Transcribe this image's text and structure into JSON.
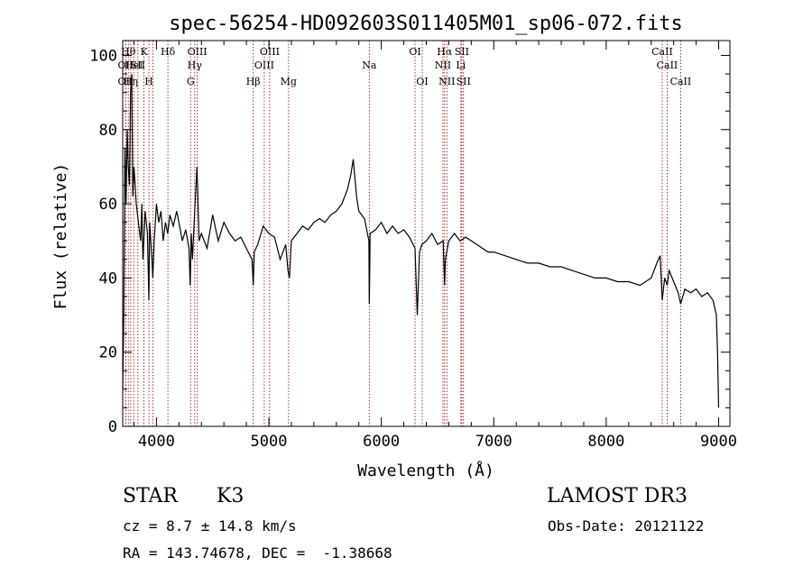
{
  "chart_data": {
    "type": "line",
    "title": "spec-56254-HD092603S011405M01_sp06-072.fits",
    "xlabel": "Wavelength (Å)",
    "ylabel": "Flux (relative)",
    "xlim": [
      3700,
      9100
    ],
    "ylim": [
      0,
      104
    ],
    "x_ticks": [
      4000,
      5000,
      6000,
      7000,
      8000,
      9000
    ],
    "y_ticks": [
      0,
      20,
      40,
      60,
      80,
      100
    ],
    "series": [
      {
        "name": "spectrum",
        "color": "#000000",
        "x": [
          3700,
          3710,
          3720,
          3730,
          3740,
          3750,
          3760,
          3770,
          3780,
          3790,
          3800,
          3820,
          3840,
          3860,
          3870,
          3880,
          3900,
          3920,
          3933,
          3940,
          3960,
          3968,
          3980,
          4000,
          4020,
          4040,
          4060,
          4080,
          4100,
          4120,
          4150,
          4180,
          4200,
          4230,
          4260,
          4290,
          4300,
          4310,
          4320,
          4340,
          4360,
          4380,
          4400,
          4450,
          4500,
          4550,
          4600,
          4650,
          4700,
          4750,
          4800,
          4850,
          4861,
          4870,
          4900,
          4950,
          5000,
          5050,
          5100,
          5150,
          5170,
          5183,
          5200,
          5250,
          5300,
          5350,
          5400,
          5450,
          5500,
          5550,
          5600,
          5650,
          5700,
          5730,
          5750,
          5780,
          5800,
          5850,
          5890,
          5893,
          5896,
          5900,
          5950,
          6000,
          6050,
          6100,
          6150,
          6200,
          6250,
          6300,
          6320,
          6340,
          6360,
          6400,
          6450,
          6500,
          6550,
          6563,
          6570,
          6600,
          6650,
          6700,
          6750,
          6800,
          6850,
          6900,
          6950,
          7000,
          7100,
          7200,
          7300,
          7400,
          7500,
          7600,
          7700,
          7800,
          7900,
          8000,
          8100,
          8200,
          8300,
          8400,
          8450,
          8480,
          8498,
          8520,
          8542,
          8560,
          8600,
          8640,
          8662,
          8700,
          8750,
          8800,
          8850,
          8900,
          8950,
          8980,
          8990,
          9000
        ],
        "y": [
          10,
          30,
          75,
          60,
          80,
          70,
          65,
          90,
          95,
          62,
          70,
          60,
          55,
          50,
          60,
          45,
          58,
          52,
          34,
          55,
          45,
          40,
          50,
          60,
          55,
          58,
          50,
          55,
          52,
          57,
          54,
          58,
          55,
          50,
          53,
          48,
          38,
          52,
          45,
          58,
          70,
          50,
          52,
          48,
          57,
          50,
          55,
          52,
          50,
          51,
          48,
          45,
          38,
          47,
          49,
          54,
          52,
          51,
          45,
          49,
          42,
          40,
          50,
          52,
          54,
          53,
          55,
          56,
          55,
          57,
          58,
          60,
          64,
          68,
          72,
          62,
          58,
          56,
          50,
          33,
          40,
          52,
          53,
          55,
          52,
          54,
          52,
          53,
          51,
          48,
          30,
          47,
          49,
          50,
          52,
          49,
          50,
          38,
          45,
          50,
          52,
          50,
          51,
          50,
          49,
          48,
          47,
          47,
          46,
          45,
          44,
          44,
          43,
          43,
          42,
          41,
          40,
          40,
          39,
          39,
          38,
          40,
          44,
          46,
          34,
          40,
          38,
          42,
          39,
          36,
          33,
          37,
          36,
          37,
          35,
          36,
          34,
          30,
          20,
          5
        ]
      }
    ],
    "line_groups": [
      {
        "name": "Halpha-group",
        "color": "#8b0000",
        "lines": [
          {
            "wavelength": 3727,
            "label": "OII",
            "row": 2
          },
          {
            "wavelength": 3727,
            "label": "OII",
            "row": 3
          },
          {
            "wavelength": 3750,
            "label": "Hθ",
            "row": 1
          },
          {
            "wavelength": 3771,
            "label": "Hη",
            "row": 3
          },
          {
            "wavelength": 3798,
            "label": "HeI",
            "row": 2
          },
          {
            "wavelength": 3835,
            "label": "SII",
            "row": 2
          },
          {
            "wavelength": 3889,
            "label": "K",
            "row": 1
          },
          {
            "wavelength": 3933,
            "label": "H",
            "row": 3
          },
          {
            "wavelength": 3968,
            "label": "",
            "row": 0
          },
          {
            "wavelength": 4102,
            "label": "Hδ",
            "row": 1
          },
          {
            "wavelength": 4304,
            "label": "G",
            "row": 3
          },
          {
            "wavelength": 4340,
            "label": "Hγ",
            "row": 2
          },
          {
            "wavelength": 4363,
            "label": "OIII",
            "row": 1
          },
          {
            "wavelength": 4861,
            "label": "Hβ",
            "row": 3
          },
          {
            "wavelength": 4959,
            "label": "OIII",
            "row": 2
          },
          {
            "wavelength": 5007,
            "label": "OIII",
            "row": 1
          },
          {
            "wavelength": 5175,
            "label": "Mg",
            "row": 3
          },
          {
            "wavelength": 5893,
            "label": "Na",
            "row": 2
          },
          {
            "wavelength": 6300,
            "label": "OI",
            "row": 1
          },
          {
            "wavelength": 6364,
            "label": "OI",
            "row": 3
          },
          {
            "wavelength": 6548,
            "label": "NII",
            "row": 2
          },
          {
            "wavelength": 6563,
            "label": "Hα",
            "row": 1
          },
          {
            "wavelength": 6583,
            "label": "NII",
            "row": 3
          },
          {
            "wavelength": 6707,
            "label": "Li",
            "row": 2
          },
          {
            "wavelength": 6716,
            "label": "SII",
            "row": 1
          },
          {
            "wavelength": 6731,
            "label": "SII",
            "row": 3
          },
          {
            "wavelength": 8498,
            "label": "CaII",
            "row": 1
          },
          {
            "wavelength": 8542,
            "label": "CaII",
            "row": 2
          },
          {
            "wavelength": 8662,
            "label": "CaII",
            "row": 3
          }
        ]
      }
    ]
  },
  "info": {
    "object_class": "STAR",
    "subclass": "K3",
    "survey": "LAMOST DR3",
    "redshift": "cz = 8.7 ± 14.8 km/s",
    "obs_date": "Obs-Date: 20121122",
    "coords": "RA = 143.74678, DEC =  -1.38668"
  }
}
